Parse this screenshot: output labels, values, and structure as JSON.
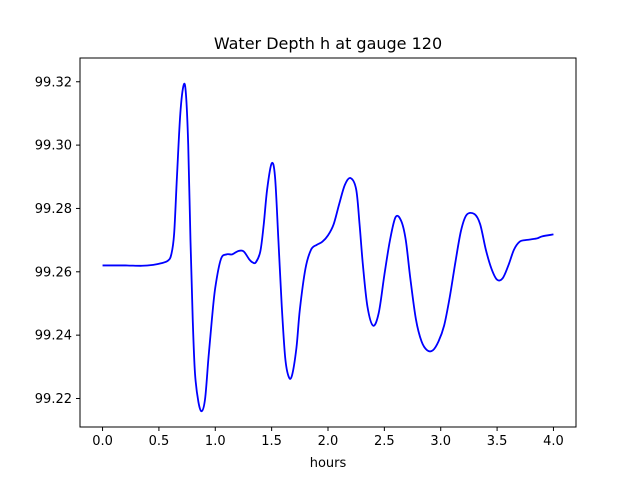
{
  "chart_data": {
    "type": "line",
    "title": "Water Depth h at gauge 120",
    "xlabel": "hours",
    "ylabel": "",
    "xlim": [
      -0.2,
      4.2
    ],
    "ylim": [
      99.211,
      99.3275
    ],
    "grid": false,
    "x_ticks": [
      0.0,
      0.5,
      1.0,
      1.5,
      2.0,
      2.5,
      3.0,
      3.5,
      4.0
    ],
    "x_tick_labels": [
      "0.0",
      "0.5",
      "1.0",
      "1.5",
      "2.0",
      "2.5",
      "3.0",
      "3.5",
      "4.0"
    ],
    "y_ticks": [
      99.22,
      99.24,
      99.26,
      99.28,
      99.3,
      99.32
    ],
    "y_tick_labels": [
      "99.22",
      "99.24",
      "99.26",
      "99.28",
      "99.30",
      "99.32"
    ],
    "series": [
      {
        "color": "#0000ff",
        "x": [
          0.0,
          0.2,
          0.35,
          0.45,
          0.52,
          0.58,
          0.61,
          0.635,
          0.66,
          0.69,
          0.72,
          0.74,
          0.76,
          0.78,
          0.8,
          0.82,
          0.85,
          0.88,
          0.91,
          0.94,
          0.97,
          1.0,
          1.05,
          1.1,
          1.15,
          1.2,
          1.25,
          1.3,
          1.33,
          1.36,
          1.4,
          1.43,
          1.46,
          1.5,
          1.53,
          1.56,
          1.59,
          1.62,
          1.65,
          1.68,
          1.72,
          1.75,
          1.8,
          1.85,
          1.9,
          1.95,
          2.0,
          2.05,
          2.1,
          2.15,
          2.2,
          2.25,
          2.28,
          2.31,
          2.35,
          2.4,
          2.45,
          2.5,
          2.55,
          2.6,
          2.65,
          2.69,
          2.73,
          2.78,
          2.83,
          2.88,
          2.93,
          2.98,
          3.03,
          3.08,
          3.13,
          3.18,
          3.23,
          3.3,
          3.35,
          3.4,
          3.45,
          3.5,
          3.55,
          3.6,
          3.65,
          3.7,
          3.75,
          3.85,
          3.9,
          4.0
        ],
        "y": [
          99.262,
          99.262,
          99.2619,
          99.2622,
          99.2627,
          99.2635,
          99.2655,
          99.272,
          99.29,
          99.31,
          99.319,
          99.316,
          99.3,
          99.27,
          99.245,
          99.228,
          99.219,
          99.216,
          99.22,
          99.233,
          99.245,
          99.255,
          99.264,
          99.2655,
          99.2655,
          99.2665,
          99.2665,
          99.264,
          99.263,
          99.263,
          99.2665,
          99.275,
          99.286,
          99.2942,
          99.29,
          99.27,
          99.249,
          99.233,
          99.227,
          99.2272,
          99.236,
          99.248,
          99.261,
          99.267,
          99.2685,
          99.2695,
          99.2715,
          99.275,
          99.2815,
          99.2875,
          99.2896,
          99.286,
          99.275,
          99.262,
          99.249,
          99.243,
          99.247,
          99.259,
          99.27,
          99.2773,
          99.276,
          99.27,
          99.258,
          99.245,
          99.238,
          99.2352,
          99.2352,
          99.238,
          99.243,
          99.252,
          99.263,
          99.273,
          99.278,
          99.2782,
          99.275,
          99.267,
          99.261,
          99.2575,
          99.258,
          99.262,
          99.267,
          99.2695,
          99.27,
          99.2705,
          99.2712,
          99.2718
        ]
      }
    ]
  }
}
